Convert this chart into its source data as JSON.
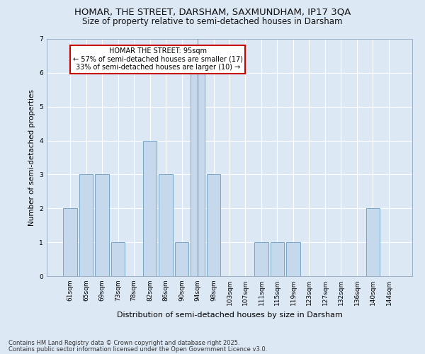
{
  "title1": "HOMAR, THE STREET, DARSHAM, SAXMUNDHAM, IP17 3QA",
  "title2": "Size of property relative to semi-detached houses in Darsham",
  "xlabel": "Distribution of semi-detached houses by size in Darsham",
  "ylabel": "Number of semi-detached properties",
  "categories": [
    "61sqm",
    "65sqm",
    "69sqm",
    "73sqm",
    "78sqm",
    "82sqm",
    "86sqm",
    "90sqm",
    "94sqm",
    "98sqm",
    "103sqm",
    "107sqm",
    "111sqm",
    "115sqm",
    "119sqm",
    "123sqm",
    "127sqm",
    "132sqm",
    "136sqm",
    "140sqm",
    "144sqm"
  ],
  "values": [
    2,
    3,
    3,
    1,
    0,
    4,
    3,
    1,
    6,
    3,
    0,
    0,
    1,
    1,
    1,
    0,
    0,
    0,
    0,
    2,
    0
  ],
  "highlight_index": 8,
  "bar_color": "#c5d8ec",
  "bar_edge_color": "#6a9ec0",
  "annotation_text": "HOMAR THE STREET: 95sqm\n← 57% of semi-detached houses are smaller (17)\n33% of semi-detached houses are larger (10) →",
  "annotation_box_color": "#ffffff",
  "annotation_border_color": "#cc0000",
  "ylim": [
    0,
    7
  ],
  "yticks": [
    0,
    1,
    2,
    3,
    4,
    5,
    6,
    7
  ],
  "footer1": "Contains HM Land Registry data © Crown copyright and database right 2025.",
  "footer2": "Contains public sector information licensed under the Open Government Licence v3.0.",
  "bg_color": "#dde8f5",
  "plot_bg_color": "#dde8f5"
}
